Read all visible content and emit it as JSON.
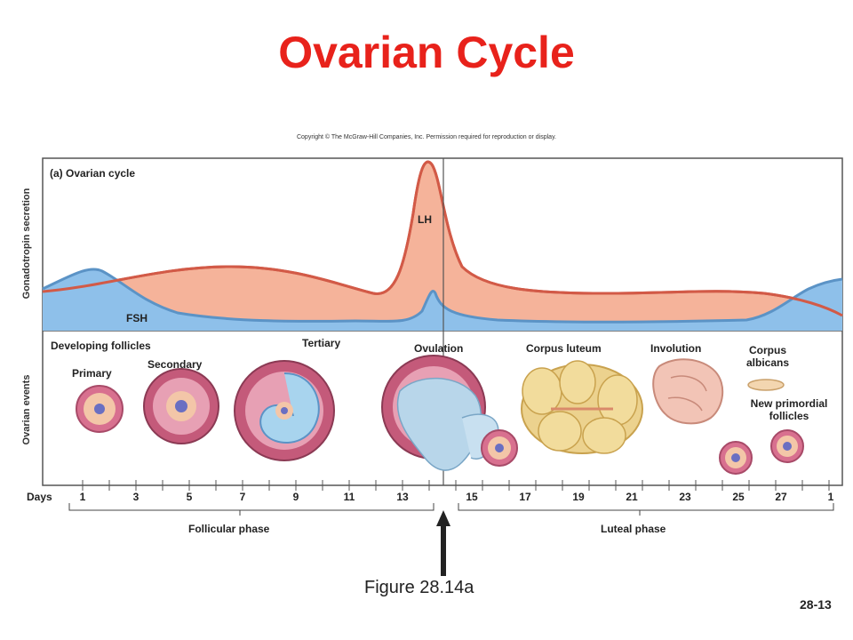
{
  "title": "Ovarian Cycle",
  "copyright": "Copyright © The McGraw-Hill Companies, Inc. Permission required for reproduction or display.",
  "panel_label": "(a) Ovarian cycle",
  "y_labels": {
    "top": "Gonadotropin secretion",
    "bottom": "Ovarian events"
  },
  "hormones": {
    "lh": "LH",
    "fsh": "FSH"
  },
  "colors": {
    "lh_fill": "#f5b39a",
    "lh_stroke": "#d25a47",
    "fsh_fill": "#8ec0ea",
    "fsh_stroke": "#5b93c6",
    "title": "#e8221b"
  },
  "events": {
    "developing_follicles": "Developing follicles",
    "primary": "Primary",
    "secondary": "Secondary",
    "tertiary": "Tertiary",
    "ovulation": "Ovulation",
    "corpus_luteum": "Corpus luteum",
    "involution": "Involution",
    "corpus_albicans": "Corpus albicans",
    "new_primordial": "New primordial follicles"
  },
  "days_label": "Days",
  "days": [
    "1",
    "3",
    "5",
    "7",
    "9",
    "11",
    "13",
    "15",
    "17",
    "19",
    "21",
    "23",
    "25",
    "27",
    "1"
  ],
  "phases": {
    "follicular": "Follicular phase",
    "luteal": "Luteal phase"
  },
  "figure_caption": "Figure 28.14a",
  "page_number": "28-13"
}
